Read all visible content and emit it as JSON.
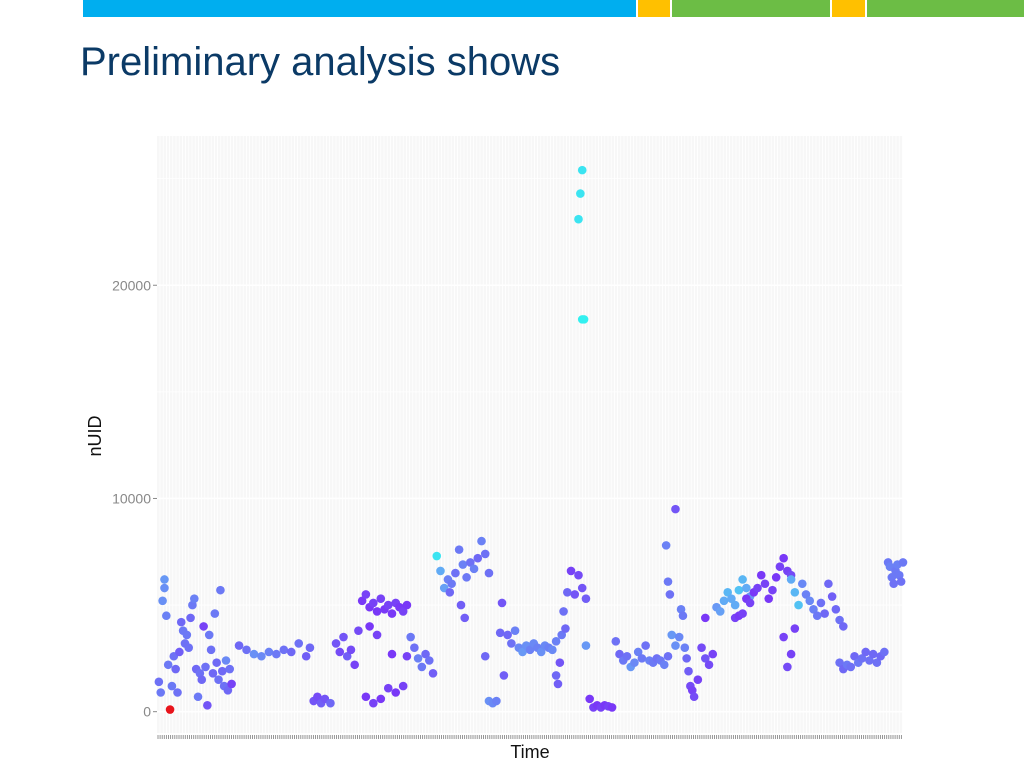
{
  "slide": {
    "title": "Preliminary analysis shows",
    "colors": {
      "title": "#0b3a66",
      "bar_blue": "#00aeef",
      "bar_yellow": "#ffc000",
      "bar_green": "#6cbd45"
    }
  },
  "chart_data": {
    "type": "scatter",
    "title": "",
    "xlabel": "Time",
    "ylabel": "nUID",
    "ylim": [
      -1000,
      27000
    ],
    "xlim": [
      0,
      400
    ],
    "yticks": [
      0,
      10000,
      20000
    ],
    "ytick_labels": [
      "0",
      "10000",
      "20000"
    ],
    "xtick_labels": [],
    "grid": true,
    "legend": "none",
    "color_scale": [
      "#7b2ff7",
      "#6e6ef5",
      "#66a3f5",
      "#33f0f0"
    ],
    "highlight_color": "#e8141b",
    "points": [
      [
        1,
        1400,
        0.35
      ],
      [
        2,
        900,
        0.4
      ],
      [
        3,
        5200,
        0.55
      ],
      [
        4,
        6200,
        0.6
      ],
      [
        4,
        5800,
        0.55
      ],
      [
        5,
        4500,
        0.45
      ],
      [
        6,
        2200,
        0.4
      ],
      [
        7,
        100,
        -1
      ],
      [
        8,
        1200,
        0.4
      ],
      [
        9,
        2600,
        0.35
      ],
      [
        10,
        2000,
        0.3
      ],
      [
        11,
        900,
        0.35
      ],
      [
        12,
        2800,
        0.25
      ],
      [
        13,
        4200,
        0.3
      ],
      [
        14,
        3800,
        0.4
      ],
      [
        15,
        3200,
        0.35
      ],
      [
        16,
        3600,
        0.4
      ],
      [
        17,
        3000,
        0.35
      ],
      [
        18,
        4400,
        0.3
      ],
      [
        19,
        5000,
        0.4
      ],
      [
        20,
        5300,
        0.45
      ],
      [
        21,
        2000,
        0.3
      ],
      [
        22,
        700,
        0.4
      ],
      [
        23,
        1800,
        0.35
      ],
      [
        24,
        1500,
        0.3
      ],
      [
        25,
        4000,
        0.1
      ],
      [
        26,
        2100,
        0.35
      ],
      [
        27,
        300,
        0.2
      ],
      [
        28,
        3600,
        0.4
      ],
      [
        29,
        2900,
        0.35
      ],
      [
        30,
        1800,
        0.3
      ],
      [
        31,
        4600,
        0.4
      ],
      [
        32,
        2300,
        0.3
      ],
      [
        33,
        1500,
        0.35
      ],
      [
        34,
        5700,
        0.4
      ],
      [
        35,
        1900,
        0.3
      ],
      [
        36,
        1200,
        0.35
      ],
      [
        37,
        2400,
        0.5
      ],
      [
        38,
        1000,
        0.3
      ],
      [
        39,
        2000,
        0.35
      ],
      [
        40,
        1300,
        0.1
      ],
      [
        44,
        3100,
        0.3
      ],
      [
        48,
        2900,
        0.35
      ],
      [
        52,
        2700,
        0.55
      ],
      [
        56,
        2600,
        0.5
      ],
      [
        60,
        2800,
        0.45
      ],
      [
        64,
        2700,
        0.4
      ],
      [
        68,
        2900,
        0.35
      ],
      [
        72,
        2800,
        0.3
      ],
      [
        76,
        3200,
        0.35
      ],
      [
        80,
        2600,
        0.25
      ],
      [
        82,
        3000,
        0.3
      ],
      [
        84,
        500,
        0.2
      ],
      [
        86,
        700,
        0.15
      ],
      [
        88,
        400,
        0.25
      ],
      [
        90,
        600,
        0.2
      ],
      [
        93,
        400,
        0.3
      ],
      [
        96,
        3200,
        0.2
      ],
      [
        98,
        2800,
        0.15
      ],
      [
        100,
        3500,
        0.2
      ],
      [
        102,
        2600,
        0.25
      ],
      [
        104,
        2900,
        0.15
      ],
      [
        106,
        2200,
        0.1
      ],
      [
        108,
        3800,
        0.15
      ],
      [
        110,
        5200,
        0.05
      ],
      [
        112,
        5500,
        0.1
      ],
      [
        114,
        4900,
        0.05
      ],
      [
        116,
        5100,
        0.1
      ],
      [
        118,
        4700,
        0.05
      ],
      [
        120,
        5300,
        0.1
      ],
      [
        122,
        4800,
        0.05
      ],
      [
        124,
        5000,
        0.1
      ],
      [
        126,
        4600,
        0.05
      ],
      [
        128,
        5100,
        0.1
      ],
      [
        130,
        4900,
        0.05
      ],
      [
        132,
        4700,
        0.1
      ],
      [
        134,
        5000,
        0.05
      ],
      [
        112,
        700,
        0.05
      ],
      [
        116,
        400,
        0.1
      ],
      [
        120,
        600,
        0.05
      ],
      [
        124,
        1100,
        0.1
      ],
      [
        128,
        900,
        0.05
      ],
      [
        132,
        1200,
        0.1
      ],
      [
        114,
        4000,
        0.05
      ],
      [
        118,
        3600,
        0.1
      ],
      [
        126,
        2700,
        0.05
      ],
      [
        134,
        2600,
        0.1
      ],
      [
        136,
        3500,
        0.4
      ],
      [
        138,
        3000,
        0.35
      ],
      [
        140,
        2500,
        0.45
      ],
      [
        142,
        2100,
        0.4
      ],
      [
        144,
        2700,
        0.3
      ],
      [
        146,
        2400,
        0.35
      ],
      [
        148,
        1800,
        0.25
      ],
      [
        150,
        7300,
        0.95
      ],
      [
        152,
        6600,
        0.7
      ],
      [
        154,
        5800,
        0.65
      ],
      [
        156,
        6200,
        0.45
      ],
      [
        158,
        6000,
        0.4
      ],
      [
        160,
        6500,
        0.35
      ],
      [
        162,
        7600,
        0.4
      ],
      [
        164,
        6900,
        0.45
      ],
      [
        166,
        6300,
        0.4
      ],
      [
        168,
        7000,
        0.35
      ],
      [
        170,
        6700,
        0.45
      ],
      [
        172,
        7200,
        0.3
      ],
      [
        174,
        8000,
        0.45
      ],
      [
        176,
        7400,
        0.35
      ],
      [
        178,
        6500,
        0.35
      ],
      [
        163,
        5000,
        0.25
      ],
      [
        165,
        4400,
        0.25
      ],
      [
        157,
        5600,
        0.3
      ],
      [
        176,
        2600,
        0.3
      ],
      [
        178,
        500,
        0.55
      ],
      [
        180,
        400,
        0.5
      ],
      [
        182,
        500,
        0.45
      ],
      [
        184,
        3700,
        0.3
      ],
      [
        185,
        5100,
        0.2
      ],
      [
        186,
        1700,
        0.25
      ],
      [
        188,
        3600,
        0.3
      ],
      [
        190,
        3200,
        0.35
      ],
      [
        192,
        3800,
        0.45
      ],
      [
        194,
        3000,
        0.5
      ],
      [
        196,
        2800,
        0.6
      ],
      [
        198,
        3100,
        0.55
      ],
      [
        200,
        2900,
        0.45
      ],
      [
        202,
        3200,
        0.5
      ],
      [
        204,
        3000,
        0.45
      ],
      [
        206,
        2800,
        0.55
      ],
      [
        208,
        3100,
        0.5
      ],
      [
        210,
        3000,
        0.45
      ],
      [
        212,
        2900,
        0.5
      ],
      [
        214,
        3300,
        0.45
      ],
      [
        214,
        1700,
        0.3
      ],
      [
        215,
        1300,
        0.25
      ],
      [
        216,
        2300,
        0.2
      ],
      [
        217,
        3600,
        0.4
      ],
      [
        218,
        4700,
        0.35
      ],
      [
        219,
        3900,
        0.3
      ],
      [
        220,
        5600,
        0.3
      ],
      [
        222,
        6600,
        0.1
      ],
      [
        224,
        5500,
        0.2
      ],
      [
        226,
        6400,
        0.15
      ],
      [
        228,
        5800,
        0.2
      ],
      [
        230,
        5300,
        0.25
      ],
      [
        226,
        23100,
        0.95
      ],
      [
        227,
        24300,
        0.95
      ],
      [
        228,
        25400,
        0.95
      ],
      [
        228,
        18400,
        1.0
      ],
      [
        229,
        18400,
        1.0
      ],
      [
        230,
        3100,
        0.6
      ],
      [
        232,
        600,
        0.05
      ],
      [
        234,
        200,
        0.1
      ],
      [
        236,
        300,
        0.05
      ],
      [
        238,
        200,
        0.1
      ],
      [
        240,
        300,
        0.05
      ],
      [
        242,
        250,
        0.1
      ],
      [
        244,
        200,
        0.05
      ],
      [
        246,
        3300,
        0.35
      ],
      [
        248,
        2700,
        0.3
      ],
      [
        250,
        2400,
        0.4
      ],
      [
        252,
        2600,
        0.35
      ],
      [
        254,
        2100,
        0.6
      ],
      [
        256,
        2300,
        0.5
      ],
      [
        258,
        2800,
        0.45
      ],
      [
        260,
        2500,
        0.4
      ],
      [
        262,
        3100,
        0.35
      ],
      [
        264,
        2400,
        0.45
      ],
      [
        266,
        2300,
        0.4
      ],
      [
        268,
        2500,
        0.35
      ],
      [
        270,
        2400,
        0.4
      ],
      [
        272,
        2200,
        0.45
      ],
      [
        274,
        2600,
        0.35
      ],
      [
        273,
        7800,
        0.45
      ],
      [
        274,
        6100,
        0.4
      ],
      [
        275,
        5500,
        0.35
      ],
      [
        276,
        3600,
        0.6
      ],
      [
        278,
        3100,
        0.55
      ],
      [
        280,
        3500,
        0.5
      ],
      [
        281,
        4800,
        0.45
      ],
      [
        282,
        4500,
        0.4
      ],
      [
        283,
        3000,
        0.45
      ],
      [
        278,
        9500,
        0.2
      ],
      [
        284,
        2500,
        0.3
      ],
      [
        285,
        1900,
        0.25
      ],
      [
        286,
        1200,
        0.15
      ],
      [
        287,
        1000,
        0.1
      ],
      [
        288,
        700,
        0.15
      ],
      [
        290,
        1500,
        0.1
      ],
      [
        292,
        3000,
        0.15
      ],
      [
        294,
        2500,
        0.2
      ],
      [
        296,
        2200,
        0.15
      ],
      [
        298,
        2700,
        0.1
      ],
      [
        294,
        4400,
        0.05
      ],
      [
        300,
        4900,
        0.6
      ],
      [
        302,
        4700,
        0.65
      ],
      [
        304,
        5200,
        0.7
      ],
      [
        306,
        5600,
        0.75
      ],
      [
        308,
        5300,
        0.7
      ],
      [
        310,
        5000,
        0.7
      ],
      [
        312,
        5700,
        0.8
      ],
      [
        314,
        6200,
        0.75
      ],
      [
        316,
        5800,
        0.7
      ],
      [
        318,
        5400,
        0.6
      ],
      [
        310,
        4400,
        0.1
      ],
      [
        312,
        4500,
        0.05
      ],
      [
        314,
        4600,
        0.1
      ],
      [
        316,
        5300,
        0.05
      ],
      [
        318,
        5100,
        0.1
      ],
      [
        320,
        5600,
        0.05
      ],
      [
        322,
        5800,
        0.1
      ],
      [
        324,
        6400,
        0.05
      ],
      [
        326,
        6000,
        0.1
      ],
      [
        328,
        5300,
        0.05
      ],
      [
        330,
        5700,
        0.1
      ],
      [
        332,
        6300,
        0.05
      ],
      [
        334,
        6800,
        0.1
      ],
      [
        336,
        7200,
        0.05
      ],
      [
        338,
        6600,
        0.1
      ],
      [
        340,
        6400,
        0.15
      ],
      [
        336,
        3500,
        0.1
      ],
      [
        338,
        2100,
        0.15
      ],
      [
        340,
        2700,
        0.1
      ],
      [
        342,
        3900,
        0.1
      ],
      [
        340,
        6200,
        0.7
      ],
      [
        342,
        5600,
        0.75
      ],
      [
        344,
        5000,
        0.8
      ],
      [
        346,
        6000,
        0.5
      ],
      [
        348,
        5500,
        0.45
      ],
      [
        350,
        5200,
        0.5
      ],
      [
        352,
        4800,
        0.45
      ],
      [
        354,
        4500,
        0.4
      ],
      [
        356,
        5100,
        0.35
      ],
      [
        358,
        4600,
        0.3
      ],
      [
        360,
        6000,
        0.3
      ],
      [
        362,
        5400,
        0.25
      ],
      [
        364,
        4800,
        0.3
      ],
      [
        366,
        4300,
        0.35
      ],
      [
        368,
        4000,
        0.3
      ],
      [
        366,
        2300,
        0.35
      ],
      [
        368,
        2000,
        0.3
      ],
      [
        370,
        2200,
        0.4
      ],
      [
        372,
        2100,
        0.35
      ],
      [
        374,
        2600,
        0.3
      ],
      [
        376,
        2300,
        0.4
      ],
      [
        378,
        2500,
        0.35
      ],
      [
        380,
        2800,
        0.3
      ],
      [
        382,
        2400,
        0.35
      ],
      [
        384,
        2700,
        0.3
      ],
      [
        386,
        2300,
        0.35
      ],
      [
        388,
        2600,
        0.3
      ],
      [
        390,
        2800,
        0.35
      ],
      [
        392,
        7000,
        0.4
      ],
      [
        393,
        6800,
        0.45
      ],
      [
        394,
        6300,
        0.4
      ],
      [
        395,
        6000,
        0.35
      ],
      [
        396,
        6600,
        0.4
      ],
      [
        397,
        6900,
        0.45
      ],
      [
        398,
        6400,
        0.4
      ],
      [
        399,
        6100,
        0.35
      ],
      [
        400,
        7000,
        0.4
      ]
    ]
  }
}
